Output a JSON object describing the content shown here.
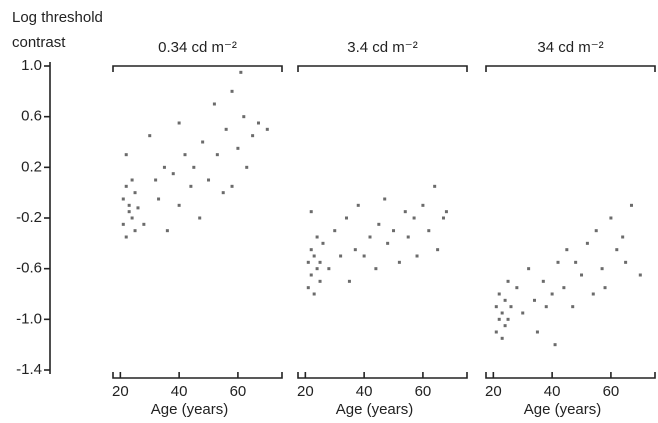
{
  "chart_data": [
    {
      "type": "scatter",
      "title": "0.34 cd m⁻²",
      "ylabel": [
        "Log threshold",
        "contrast"
      ],
      "xlabel": "Age (years)",
      "color": "#3a3a3a",
      "xlim": [
        17.5,
        75
      ],
      "xticks": [
        20,
        40,
        60
      ],
      "ylim": [
        -1.4,
        1.0
      ],
      "yticks": [
        {
          "value": 1.0,
          "label": "1.0"
        },
        0.6,
        0.2,
        -0.2,
        -0.6,
        {
          "value": -1.0,
          "label": "-1.0"
        },
        -1.4
      ],
      "x": [
        21,
        21,
        22,
        22,
        23,
        23,
        24,
        24,
        25,
        25,
        22,
        26,
        28,
        30,
        32,
        33,
        35,
        36,
        38,
        40,
        40,
        42,
        44,
        45,
        47,
        48,
        50,
        52,
        53,
        55,
        56,
        58,
        60,
        61,
        62,
        63,
        65,
        67,
        70,
        58
      ],
      "y": [
        -0.05,
        -0.25,
        -0.35,
        0.05,
        -0.15,
        -0.1,
        0.1,
        -0.2,
        -0.3,
        0.0,
        0.3,
        -0.12,
        -0.25,
        0.45,
        0.1,
        -0.05,
        0.2,
        -0.3,
        0.15,
        0.55,
        -0.1,
        0.3,
        0.05,
        0.2,
        -0.2,
        0.4,
        0.1,
        0.7,
        0.3,
        0.0,
        0.5,
        0.8,
        0.35,
        0.95,
        0.6,
        0.2,
        0.45,
        0.55,
        0.5,
        0.05
      ]
    },
    {
      "type": "scatter",
      "title": "3.4 cd m⁻²",
      "xlabel": "Age (years)",
      "color": "#3a3a3a",
      "xlim": [
        17.5,
        75
      ],
      "xticks": [
        20,
        40,
        60
      ],
      "ylim": [
        -1.4,
        1.0
      ],
      "x": [
        21,
        21,
        22,
        22,
        23,
        23,
        24,
        24,
        25,
        25,
        22,
        26,
        28,
        30,
        32,
        34,
        35,
        37,
        38,
        40,
        42,
        44,
        45,
        47,
        48,
        50,
        52,
        54,
        55,
        57,
        58,
        60,
        62,
        64,
        65,
        67,
        68
      ],
      "y": [
        -0.55,
        -0.75,
        -0.45,
        -0.65,
        -0.5,
        -0.8,
        -0.6,
        -0.35,
        -0.7,
        -0.55,
        -0.15,
        -0.4,
        -0.6,
        -0.3,
        -0.5,
        -0.2,
        -0.7,
        -0.45,
        -0.1,
        -0.5,
        -0.35,
        -0.6,
        -0.25,
        -0.05,
        -0.4,
        -0.3,
        -0.55,
        -0.15,
        -0.35,
        -0.2,
        -0.5,
        -0.1,
        -0.3,
        0.05,
        -0.45,
        -0.2,
        -0.15
      ]
    },
    {
      "type": "scatter",
      "title": "34 cd m⁻²",
      "xlabel": "Age (years)",
      "color": "#3a3a3a",
      "xlim": [
        17.5,
        75
      ],
      "xticks": [
        20,
        40,
        60
      ],
      "ylim": [
        -1.4,
        1.0
      ],
      "x": [
        21,
        21,
        22,
        22,
        23,
        23,
        24,
        24,
        25,
        25,
        26,
        28,
        30,
        32,
        34,
        35,
        37,
        38,
        40,
        41,
        42,
        44,
        45,
        47,
        48,
        50,
        52,
        54,
        55,
        57,
        58,
        60,
        62,
        64,
        65,
        67,
        70
      ],
      "y": [
        -0.9,
        -1.1,
        -0.8,
        -1.0,
        -1.15,
        -0.95,
        -0.85,
        -1.05,
        -0.7,
        -1.0,
        -0.9,
        -0.75,
        -0.95,
        -0.6,
        -0.85,
        -1.1,
        -0.7,
        -0.9,
        -0.8,
        -1.2,
        -0.55,
        -0.75,
        -0.45,
        -0.9,
        -0.55,
        -0.65,
        -0.4,
        -0.8,
        -0.3,
        -0.6,
        -0.75,
        -0.2,
        -0.45,
        -0.35,
        -0.55,
        -0.1,
        -0.65
      ]
    }
  ]
}
